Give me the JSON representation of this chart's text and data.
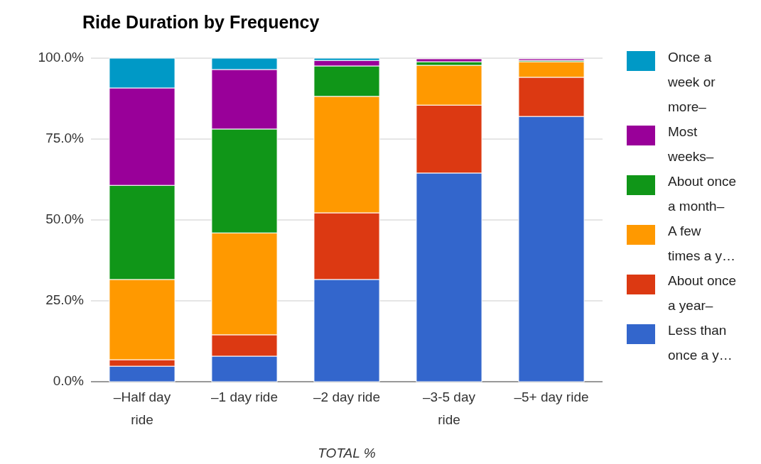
{
  "chart_data": {
    "type": "bar",
    "title": "Ride Duration by Frequency",
    "xlabel": "TOTAL %",
    "stacked": true,
    "grid": "y",
    "legend": "right",
    "categories": [
      "–Half day ride",
      "–1 day ride",
      "–2 day ride",
      "–3-5 day ride",
      "–5+ day ride"
    ],
    "ylim": [
      0,
      100
    ],
    "yticks": [
      {
        "value": 0,
        "label": "0.0%"
      },
      {
        "value": 25,
        "label": "25.0%"
      },
      {
        "value": 50,
        "label": "50.0%"
      },
      {
        "value": 75,
        "label": "75.0%"
      },
      {
        "value": 100,
        "label": "100.0%"
      }
    ],
    "series": [
      {
        "name": "Less than once a y…",
        "color": "#3366cc",
        "values": [
          4.8,
          7.9,
          31.6,
          64.5,
          82
        ]
      },
      {
        "name": "About once a year–",
        "color": "#dc3912",
        "values": [
          2,
          6.6,
          20.6,
          21,
          12.1
        ]
      },
      {
        "name": "A few times a y…",
        "color": "#ff9900",
        "values": [
          24.8,
          31.5,
          36,
          12.3,
          4.8
        ]
      },
      {
        "name": "About once a month–",
        "color": "#109618",
        "values": [
          29.1,
          32.1,
          9.4,
          1.1,
          0.4
        ]
      },
      {
        "name": "Most weeks–",
        "color": "#990099",
        "values": [
          30.1,
          18.4,
          1.7,
          0.9,
          0.5
        ]
      },
      {
        "name": "Once a week or more–",
        "color": "#0099c6",
        "values": [
          9.2,
          3.5,
          0.7,
          null,
          null
        ]
      }
    ]
  }
}
